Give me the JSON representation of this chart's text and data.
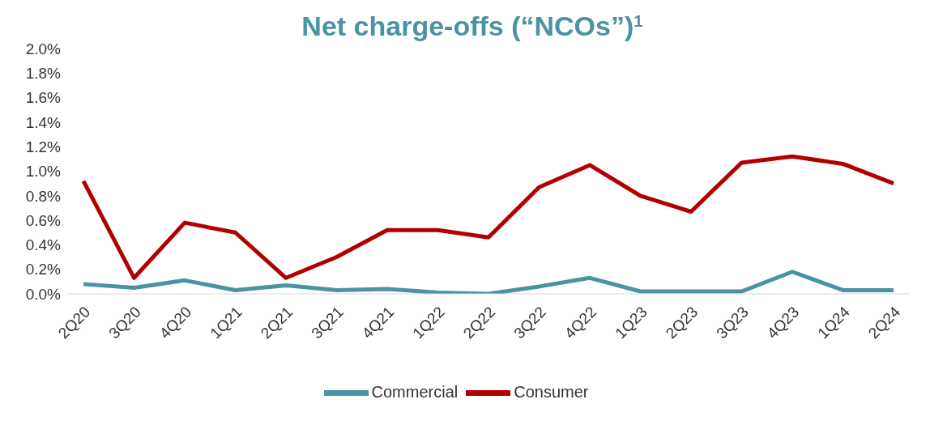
{
  "chart_data": {
    "type": "line",
    "title": "Net charge-offs (“NCOs”)$^{1}$",
    "categories": [
      "2Q20",
      "3Q20",
      "4Q20",
      "1Q21",
      "2Q21",
      "3Q21",
      "4Q21",
      "1Q22",
      "2Q22",
      "3Q22",
      "4Q22",
      "1Q23",
      "2Q23",
      "3Q23",
      "4Q23",
      "1Q24",
      "2Q24"
    ],
    "series": [
      {
        "name": "Commercial",
        "color": "#4a93a3",
        "values": [
          0.08,
          0.05,
          0.11,
          0.03,
          0.07,
          0.03,
          0.04,
          0.01,
          0.0,
          0.06,
          0.13,
          0.02,
          0.02,
          0.02,
          0.18,
          0.03,
          0.03
        ]
      },
      {
        "name": "Consumer",
        "color": "#b00000",
        "values": [
          0.92,
          0.13,
          0.58,
          0.5,
          0.13,
          0.3,
          0.52,
          0.52,
          0.46,
          0.87,
          1.05,
          0.8,
          0.67,
          1.07,
          1.12,
          1.06,
          0.9
        ]
      }
    ],
    "ylim": [
      0,
      2.0
    ],
    "yticks": [
      {
        "value": 0,
        "label": "0.0%"
      },
      {
        "value": 0.2,
        "label": "0.2%"
      },
      {
        "value": 0.4,
        "label": "0.4%"
      },
      {
        "value": 0.6,
        "label": "0.6%"
      },
      {
        "value": 0.8,
        "label": "0.8%"
      },
      {
        "value": 1.0,
        "label": "1.0%"
      },
      {
        "value": 1.2,
        "label": "1.2%"
      },
      {
        "value": 1.4,
        "label": "1.4%"
      },
      {
        "value": 1.6,
        "label": "1.6%"
      },
      {
        "value": 1.8,
        "label": "1.8%"
      },
      {
        "value": 2.0,
        "label": "2.0%"
      }
    ],
    "grid": false,
    "legend": "bottom",
    "marker": "none",
    "line_style": "solid"
  }
}
